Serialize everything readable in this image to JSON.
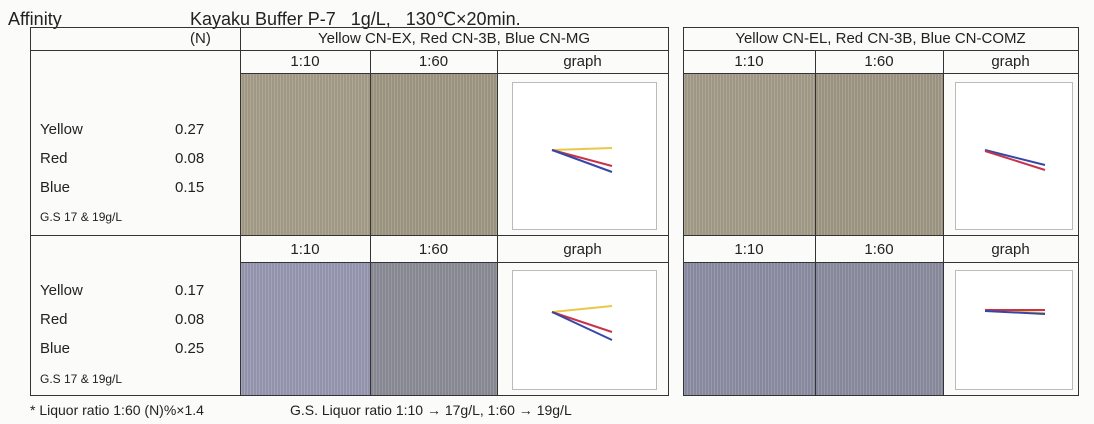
{
  "header": {
    "title": "Affinity",
    "condition": "Kayaku Buffer P-7   1g/L,   130℃×20min."
  },
  "table": {
    "n_label": "(N)",
    "groups": [
      {
        "title": "Yellow CN-EX, Red CN-3B, Blue CN-MG",
        "columns": [
          "1:10",
          "1:60",
          "graph"
        ]
      },
      {
        "title": "Yellow CN-EL, Red CN-3B, Blue CN-COMZ",
        "columns": [
          "1:10",
          "1:60",
          "graph"
        ]
      }
    ],
    "rows": [
      {
        "dyes": [
          {
            "name": "Yellow",
            "value": "0.27"
          },
          {
            "name": "Red",
            "value": "0.08"
          },
          {
            "name": "Blue",
            "value": "0.15"
          }
        ],
        "note": "G.S 17 & 19g/L"
      },
      {
        "dyes": [
          {
            "name": "Yellow",
            "value": "0.17"
          },
          {
            "name": "Red",
            "value": "0.08"
          },
          {
            "name": "Blue",
            "value": "0.25"
          }
        ],
        "note": "G.S 17 & 19g/L"
      }
    ]
  },
  "footer": {
    "ratio_note": "* Liquor ratio 1:60 (N)%×1.4",
    "gs_note": "G.S. Liquor ratio 1:10 → 17g/L, 1:60 → 19g/L"
  }
}
